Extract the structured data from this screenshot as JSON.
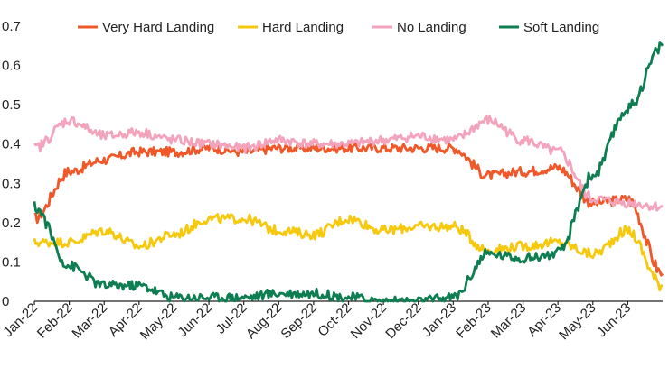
{
  "chart_data": {
    "type": "line",
    "title": "",
    "xlabel": "",
    "ylabel": "",
    "ylim": [
      0,
      0.7
    ],
    "y_ticks": [
      0,
      0.1,
      0.2,
      0.3,
      0.4,
      0.5,
      0.6,
      0.7
    ],
    "y_tick_labels": [
      "0",
      "0.1",
      "0.2",
      "0.3",
      "0.4",
      "0.5",
      "0.6",
      "0.7"
    ],
    "x_tick_labels": [
      "Jan-22",
      "Feb-22",
      "Mar-22",
      "Apr-22",
      "May-22",
      "Jun-22",
      "Jul-22",
      "Aug-22",
      "Sep-22",
      "Oct-22",
      "Nov-22",
      "Dec-22",
      "Jan-23",
      "Feb-23",
      "Mar-23",
      "Apr-23",
      "May-23",
      "Jun-23"
    ],
    "x": [
      "2022-01",
      "2022-02",
      "2022-03",
      "2022-04",
      "2022-05",
      "2022-06",
      "2022-07",
      "2022-08",
      "2022-09",
      "2022-10",
      "2022-11",
      "2022-12",
      "2023-01",
      "2023-02",
      "2023-03",
      "2023-04",
      "2023-05",
      "2023-06",
      "2023-07"
    ],
    "legend": "top",
    "grid": false,
    "series": [
      {
        "name": "Very Hard Landing",
        "color": "#f0582a",
        "values": [
          0.21,
          0.33,
          0.36,
          0.38,
          0.38,
          0.39,
          0.38,
          0.39,
          0.39,
          0.39,
          0.39,
          0.39,
          0.39,
          0.32,
          0.33,
          0.34,
          0.25,
          0.26,
          0.07
        ]
      },
      {
        "name": "Hard Landing",
        "color": "#f6c90e",
        "values": [
          0.15,
          0.15,
          0.18,
          0.14,
          0.17,
          0.21,
          0.21,
          0.18,
          0.17,
          0.21,
          0.18,
          0.19,
          0.19,
          0.13,
          0.14,
          0.15,
          0.12,
          0.18,
          0.04
        ]
      },
      {
        "name": "No Landing",
        "color": "#f4a3bd",
        "values": [
          0.39,
          0.46,
          0.42,
          0.43,
          0.41,
          0.4,
          0.39,
          0.41,
          0.4,
          0.4,
          0.41,
          0.42,
          0.41,
          0.46,
          0.41,
          0.38,
          0.26,
          0.25,
          0.24
        ]
      },
      {
        "name": "Soft Landing",
        "color": "#0e7e52",
        "values": [
          0.24,
          0.09,
          0.04,
          0.04,
          0.01,
          0.01,
          0.01,
          0.02,
          0.02,
          0.01,
          0.0,
          0.0,
          0.01,
          0.12,
          0.11,
          0.12,
          0.32,
          0.49,
          0.65
        ]
      }
    ]
  }
}
